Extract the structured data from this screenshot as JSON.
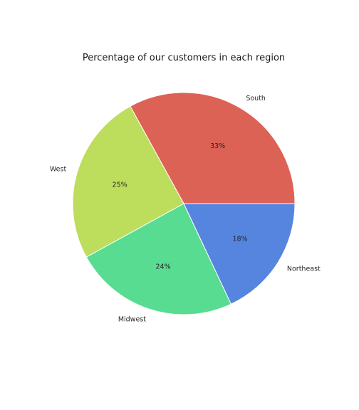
{
  "chart_data": {
    "type": "pie",
    "title": "Percentage of our customers in each region",
    "categories": [
      "South",
      "West",
      "Midwest",
      "Northeast"
    ],
    "values": [
      33,
      25,
      24,
      18
    ],
    "value_labels": [
      "33%",
      "25%",
      "24%",
      "18%"
    ],
    "colors": [
      "#dd6256",
      "#bddd5c",
      "#57dc92",
      "#5585df"
    ],
    "start_angle_deg": 0,
    "direction": "counterclockwise",
    "wedge_edge_color": "#ffffff"
  }
}
